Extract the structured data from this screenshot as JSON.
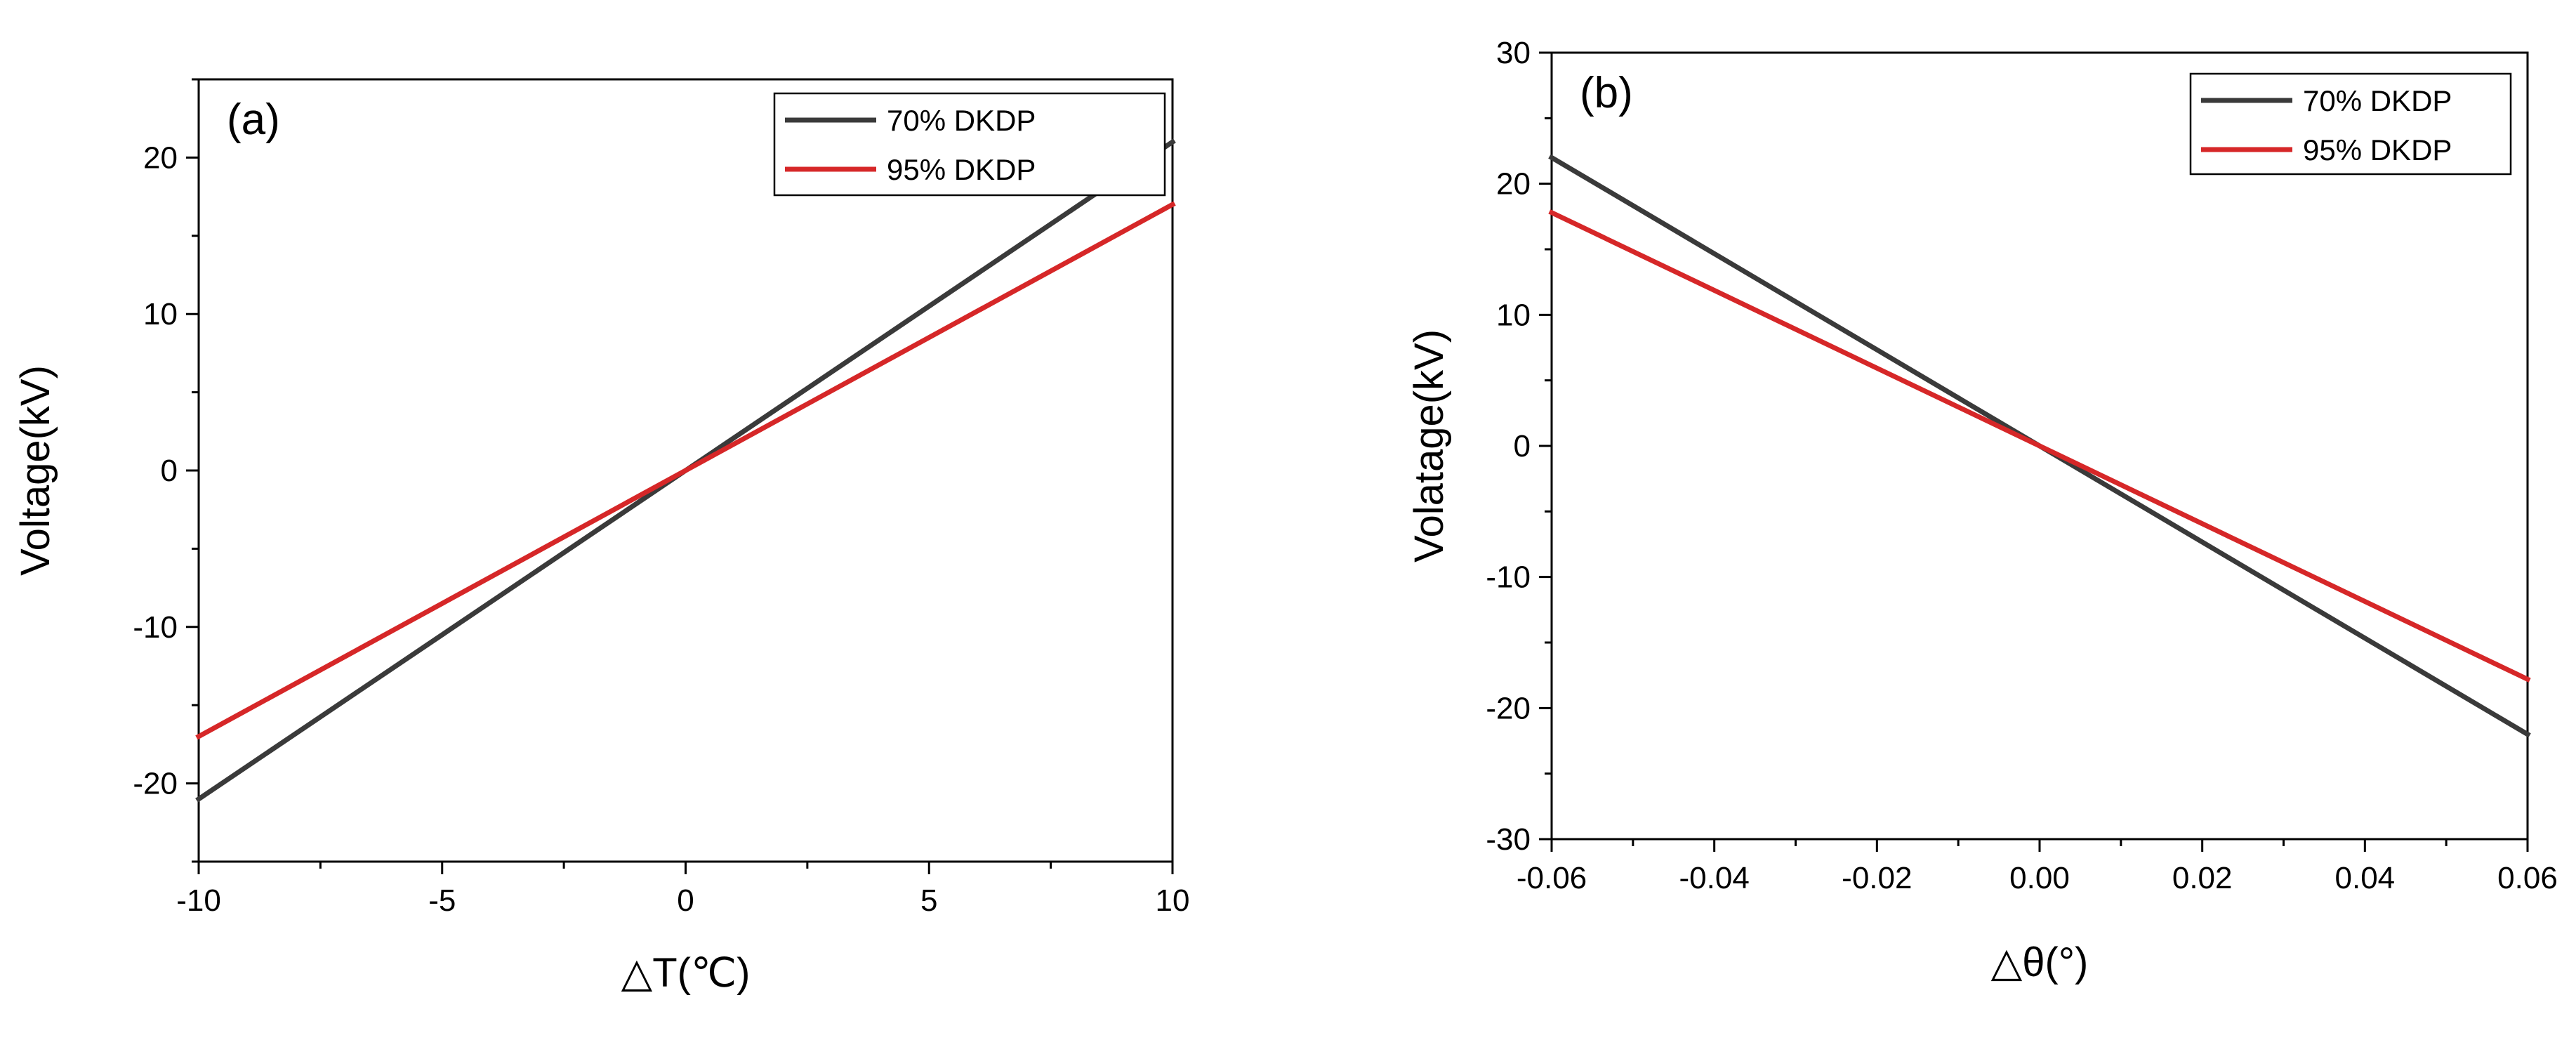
{
  "chart_data": [
    {
      "type": "line",
      "panel_label": "(a)",
      "xlabel": "△T(℃)",
      "ylabel": "Voltage(kV)",
      "xlim": [
        -10,
        10
      ],
      "ylim": [
        -25,
        25
      ],
      "xticks": [
        -10,
        -5,
        0,
        5,
        10
      ],
      "yticks": [
        -20,
        -10,
        0,
        10,
        20
      ],
      "legend_position": "top-right",
      "series": [
        {
          "name": "70% DKDP",
          "color": "#3a3a3a",
          "x": [
            -10,
            10
          ],
          "y": [
            -21,
            21
          ]
        },
        {
          "name": "95% DKDP",
          "color": "#d62728",
          "x": [
            -10,
            10
          ],
          "y": [
            -17,
            17
          ]
        }
      ]
    },
    {
      "type": "line",
      "panel_label": "(b)",
      "xlabel": "△θ(°)",
      "ylabel": "Volatage(kV)",
      "xlim": [
        -0.06,
        0.06
      ],
      "ylim": [
        -30,
        30
      ],
      "xticks": [
        -0.06,
        -0.04,
        -0.02,
        0.0,
        0.02,
        0.04,
        0.06
      ],
      "xtick_labels": [
        "-0.06",
        "-0.04",
        "-0.02",
        "0.00",
        "0.02",
        "0.04",
        "0.06"
      ],
      "yticks": [
        -30,
        -20,
        -10,
        0,
        10,
        20,
        30
      ],
      "legend_position": "top-right",
      "series": [
        {
          "name": "70% DKDP",
          "color": "#3a3a3a",
          "x": [
            -0.06,
            0.06
          ],
          "y": [
            22,
            -22
          ]
        },
        {
          "name": "95% DKDP",
          "color": "#d62728",
          "x": [
            -0.06,
            0.06
          ],
          "y": [
            17.8,
            -17.8
          ]
        }
      ]
    }
  ]
}
